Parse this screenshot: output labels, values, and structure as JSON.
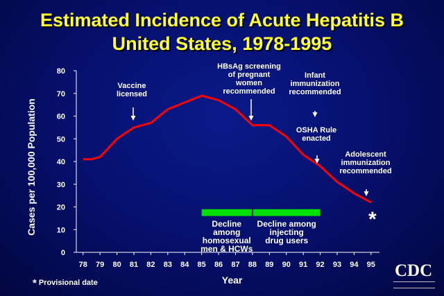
{
  "title": {
    "line1": "Estimated Incidence of Acute Hepatitis B",
    "line2": "United States, 1978-1995"
  },
  "colors": {
    "title": "#ffff33",
    "line": "#ff0000",
    "bar": "#00e000",
    "text": "#ffffff"
  },
  "chart_data": {
    "type": "line",
    "title": "Estimated Incidence of Acute Hepatitis B United States, 1978-1995",
    "xlabel": "Year",
    "ylabel": "Cases per 100,000 Population",
    "ylim": [
      0,
      80
    ],
    "yticks": [
      "0",
      "10",
      "20",
      "30",
      "40",
      "50",
      "60",
      "70",
      "80"
    ],
    "categories": [
      "78",
      "79",
      "80",
      "81",
      "82",
      "83",
      "84",
      "85",
      "86",
      "87",
      "88",
      "89",
      "90",
      "91",
      "92",
      "93",
      "94",
      "95"
    ],
    "series": [
      {
        "name": "Incidence",
        "x": [
          1978,
          1978.5,
          1979,
          1980,
          1981,
          1982,
          1983,
          1984,
          1985,
          1986,
          1987,
          1988,
          1989,
          1990,
          1991,
          1992,
          1993,
          1994,
          1995
        ],
        "values": [
          41,
          41,
          42,
          50,
          55,
          57,
          63,
          66,
          69,
          67,
          63,
          56,
          56,
          51,
          43,
          38,
          31,
          26,
          22
        ]
      }
    ],
    "periods": [
      {
        "label": [
          "Decline",
          "among",
          "homosexual",
          "men & HCWs"
        ],
        "from": 1985,
        "to": 1988
      },
      {
        "label": [
          "Decline among",
          "injecting",
          "drug users"
        ],
        "from": 1988,
        "to": 1992
      }
    ],
    "annotations": [
      {
        "text": [
          "Vaccine",
          "licensed"
        ],
        "x": 1982
      },
      {
        "text": [
          "HBsAg screening",
          "of pregnant",
          "women",
          "recommended"
        ],
        "x": 1988
      },
      {
        "text": [
          "Infant",
          "immunization",
          "recommended"
        ],
        "x": 1991.7
      },
      {
        "text": [
          "OSHA Rule",
          "enacted"
        ],
        "x": 1992
      },
      {
        "text": [
          "Adolescent",
          "immunization",
          "recommended"
        ],
        "x": 1995
      }
    ],
    "provisional_marker": "*"
  },
  "footnote": {
    "star": "*",
    "text": "Provisional date"
  },
  "logo": {
    "text": "CDC"
  }
}
